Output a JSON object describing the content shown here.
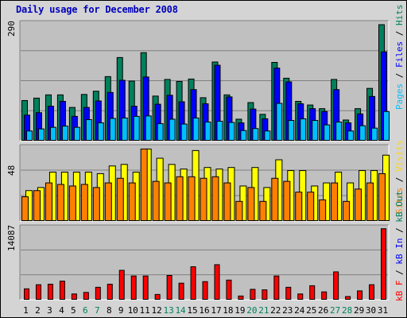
{
  "title": "Daily usage for December 2008",
  "colors": {
    "pages": "#00c0ff",
    "files": "#0000ff",
    "hits": "#00805c",
    "visits": "#ffff00",
    "sites": "#ff8000",
    "kbin": "#0000ff",
    "kbout": "#00805c",
    "kbf": "#ff0000",
    "plot_bg": "#c0c0c0",
    "grid": "#808080",
    "weekend_label": "#00805c",
    "weekday_label": "#000000"
  },
  "labels": {
    "panel1_max": "290",
    "panel2_max": "48",
    "panel3_max": "14087",
    "legend1": [
      {
        "text": "Pages",
        "color": "#00c0ff"
      },
      {
        "text": " / ",
        "color": "#000000"
      },
      {
        "text": "Files",
        "color": "#0000ff"
      },
      {
        "text": " / ",
        "color": "#000000"
      },
      {
        "text": "Hits",
        "color": "#00805c"
      }
    ],
    "legend2": [
      {
        "text": "Sites",
        "color": "#ff8000"
      },
      {
        "text": " / ",
        "color": "#000000"
      },
      {
        "text": "Visits",
        "color": "#ffd700"
      }
    ],
    "legend3": [
      {
        "text": "kB F",
        "color": "#ff0000"
      },
      {
        "text": " / ",
        "color": "#000000"
      },
      {
        "text": "kB In",
        "color": "#0000ff"
      },
      {
        "text": " / ",
        "color": "#000000"
      },
      {
        "text": "kB Out",
        "color": "#00805c"
      }
    ]
  },
  "chart_data": {
    "type": "bar",
    "categories": [
      "1",
      "2",
      "3",
      "4",
      "5",
      "6",
      "7",
      "8",
      "9",
      "10",
      "11",
      "12",
      "13",
      "14",
      "15",
      "16",
      "17",
      "18",
      "19",
      "20",
      "21",
      "22",
      "23",
      "24",
      "25",
      "26",
      "27",
      "28",
      "29",
      "30",
      "31"
    ],
    "weekend_days": [
      "6",
      "7",
      "13",
      "14",
      "20",
      "21",
      "27",
      "28"
    ],
    "panels": [
      {
        "max": 290,
        "series": [
          {
            "name": "Hits",
            "values": [
              100,
              106,
              114,
              114,
              83,
              115,
              123,
              159,
              206,
              148,
              218,
              111,
              152,
              147,
              153,
              107,
              195,
              114,
              54,
              95,
              66,
              194,
              155,
              98,
              89,
              80,
              152,
              52,
              80,
              130,
              287
            ]
          },
          {
            "name": "Files",
            "values": [
              64,
              70,
              86,
              98,
              61,
              83,
              99,
              120,
              150,
              86,
              158,
              91,
              113,
              97,
              127,
              92,
              187,
              109,
              45,
              79,
              55,
              180,
              146,
              92,
              80,
              73,
              127,
              45,
              67,
              110,
              220
            ]
          },
          {
            "name": "Pages",
            "values": [
              25,
              30,
              34,
              37,
              34,
              53,
              45,
              56,
              57,
              61,
              62,
              43,
              54,
              42,
              57,
              47,
              49,
              46,
              26,
              31,
              25,
              93,
              51,
              55,
              51,
              40,
              47,
              25,
              38,
              32,
              73
            ]
          }
        ]
      },
      {
        "max": 48,
        "series": [
          {
            "name": "Visits",
            "values": [
              20,
              22,
              32,
              32,
              32,
              32,
              31,
              36,
              37,
              32,
              47,
              41,
              37,
              34,
              46,
              35,
              34,
              35,
              23,
              35,
              22,
              40,
              33,
              33,
              23,
              25,
              32,
              25,
              33,
              33,
              43
            ]
          },
          {
            "name": "Sites",
            "values": [
              16,
              20,
              25,
              24,
              23,
              24,
              22,
              25,
              28,
              25,
              47,
              26,
              25,
              29,
              29,
              28,
              29,
              25,
              13,
              22,
              13,
              28,
              26,
              19,
              19,
              14,
              25,
              13,
              21,
              25,
              31
            ]
          }
        ]
      },
      {
        "max": 14087,
        "series": [
          {
            "name": "kB F",
            "values": [
              2200,
              3000,
              3100,
              3700,
              1200,
              1500,
              2500,
              3100,
              5800,
              4700,
              4700,
              1100,
              4800,
              3300,
              6500,
              3600,
              6900,
              3900,
              800,
              2100,
              2000,
              4700,
              2500,
              1200,
              2800,
              1600,
              5500,
              700,
              1800,
              3000,
              13900
            ]
          }
        ]
      }
    ]
  }
}
